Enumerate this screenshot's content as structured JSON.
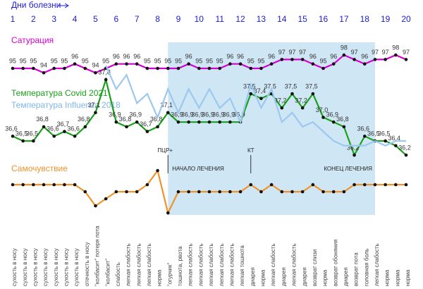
{
  "chart_data": [
    {
      "type": "line",
      "title": "Сатурация",
      "xlabel": "Дни болезни",
      "xticks": [
        1,
        2,
        3,
        4,
        5,
        6,
        7,
        8,
        9,
        10,
        11,
        12,
        13,
        14,
        15,
        16,
        17,
        18,
        19,
        20
      ],
      "xlim": [
        1,
        20
      ],
      "x": [
        1,
        1.5,
        2,
        2.5,
        3,
        3.5,
        4,
        4.5,
        5,
        5.5,
        6,
        6.5,
        7,
        7.5,
        8,
        8.5,
        9,
        9.5,
        10,
        10.5,
        11,
        11.5,
        12,
        12.5,
        13,
        13.5,
        14,
        14.5,
        15,
        15.5,
        16,
        16.5,
        17,
        17.5,
        18,
        18.5,
        19,
        19.5,
        20
      ],
      "ylim": [
        93,
        100
      ],
      "series": [
        {
          "name": "Сатурация",
          "color": "#d400d4",
          "values": [
            95,
            95,
            95,
            94,
            95,
            95,
            96,
            95,
            94,
            95,
            96,
            96,
            96,
            95,
            95,
            95,
            95,
            96,
            95,
            95,
            95,
            96,
            96,
            95,
            95,
            96,
            97,
            97,
            97,
            96,
            95,
            96,
            98,
            97,
            96,
            97,
            97,
            98,
            97
          ]
        }
      ]
    },
    {
      "type": "line",
      "xlim": [
        1,
        20
      ],
      "x": [
        1,
        1.5,
        2,
        2.5,
        3,
        3.5,
        4,
        4.5,
        5,
        5.5,
        6,
        6.5,
        7,
        7.5,
        8,
        8.5,
        9,
        9.5,
        10,
        10.5,
        11,
        11.5,
        12,
        12.5,
        13,
        13.5,
        14,
        14.5,
        15,
        15.5,
        16,
        16.5,
        17,
        17.5,
        18,
        18.5,
        19,
        19.5,
        20
      ],
      "ylim": [
        36,
        38.2
      ],
      "series": [
        {
          "name": "Температура Covid 2021",
          "color": "#1aa01a",
          "values": [
            36.6,
            36.5,
            36.5,
            36.8,
            36.6,
            36.7,
            36.6,
            36.8,
            37.1,
            37.8,
            36.9,
            36.8,
            36.9,
            36.7,
            36.8,
            37.1,
            36.9,
            36.9,
            36.9,
            36.9,
            36.9,
            36.9,
            36.9,
            37.5,
            37.4,
            37.5,
            37.2,
            37.5,
            37.2,
            37.5,
            37.0,
            36.9,
            36.8,
            36.2,
            36.6,
            36.5,
            36.5,
            36.4,
            36.2
          ],
          "value_labels": [
            "36,6",
            "36,5",
            "36,5",
            "36,8",
            "36,6",
            "36,7",
            "36,6",
            "36,8",
            "37,1",
            "37,8",
            "36,9",
            "36,8",
            "36,9",
            "36,7",
            "36,8",
            "37,1",
            "36,9",
            "36,9",
            "36,9",
            "36,9",
            "36,9",
            "36,9",
            "36,9",
            "37,5",
            "37,4",
            "37,5",
            "37,2",
            "37,5",
            "37,2",
            "37,5",
            "37,0",
            "36,9",
            "36,8",
            "36,2",
            "36,6",
            "36,5",
            "36,5",
            "36,4",
            "36,2"
          ]
        },
        {
          "name": "Температура Influenza 2018",
          "color": "#9cc8f0",
          "values": [
            null,
            null,
            null,
            null,
            null,
            null,
            null,
            null,
            null,
            38.1,
            37.6,
            37.9,
            37.3,
            37.5,
            37.0,
            37.6,
            37.1,
            37.6,
            37.2,
            37.6,
            37.2,
            37.4,
            36.9,
            37.7,
            37.2,
            37.6,
            36.9,
            37.1,
            36.8,
            36.9,
            36.7,
            36.5,
            36.4,
            36.4,
            36.4,
            36.5,
            36.4,
            36.5,
            36.5
          ]
        }
      ]
    },
    {
      "type": "line",
      "title": "Самочувствие",
      "xlim": [
        1,
        20
      ],
      "x": [
        1,
        1.5,
        2,
        2.5,
        3,
        3.5,
        4,
        4.5,
        5,
        5.5,
        6,
        6.5,
        7,
        7.5,
        8,
        8.5,
        9,
        9.5,
        10,
        10.5,
        11,
        11.5,
        12,
        12.5,
        13,
        13.5,
        14,
        14.5,
        15,
        15.5,
        16,
        16.5,
        17,
        17.5,
        18,
        18.5,
        19,
        19.5,
        20
      ],
      "ylim": [
        -5,
        2
      ],
      "series": [
        {
          "name": "Самочувствие",
          "color": "#f0932a",
          "values": [
            0,
            0,
            0,
            0,
            0,
            0,
            0,
            -1,
            -3,
            -2,
            -1,
            -1,
            -1,
            0,
            2,
            -4,
            -1,
            -1,
            -1,
            -1,
            -1,
            -1,
            -1,
            0,
            -1,
            0,
            -1,
            -1,
            -1,
            0,
            -1,
            -1,
            -1,
            0,
            0,
            0,
            0,
            0,
            0
          ]
        }
      ],
      "point_labels": [
        "сухость в носу",
        "сухость в носу",
        "сухость в носу",
        "сухость в носу",
        "сухость в носу",
        "сухость в носу",
        "сухость в носу",
        "отечность в носу",
        "\"колбасит\" потеря пота",
        "\"колбасит\"",
        "слабость",
        "легкая слабость",
        "легкая слабость",
        "легкая слабость",
        "норма",
        "\"огурчик\"",
        "тошнота, рвота",
        "легкая слабость",
        "легкая слабость",
        "легкая слабость",
        "легкая слабость",
        "легкая слабость",
        "легкая тошнота",
        "диарея",
        "норма",
        "легкая слабость",
        "диарея",
        "легкая слабость",
        "диарея",
        "возврат слизи",
        "норма",
        "возврат обоняния",
        "диарея",
        "возврат пота",
        "головная боль",
        "легкая слабость",
        "норма",
        "норма",
        "норма"
      ],
      "highlight": [
        8.5,
        18.5
      ],
      "annotations": [
        {
          "text": "ПЦР+",
          "x": 8.5
        },
        {
          "text": "НАЧАЛО ЛЕЧЕНИЯ",
          "x": 8.5
        },
        {
          "text": "КТ",
          "x": 12.5
        },
        {
          "text": "КОНЕЦ ЛЕЧЕНИЯ",
          "x": 18.5
        }
      ]
    }
  ]
}
